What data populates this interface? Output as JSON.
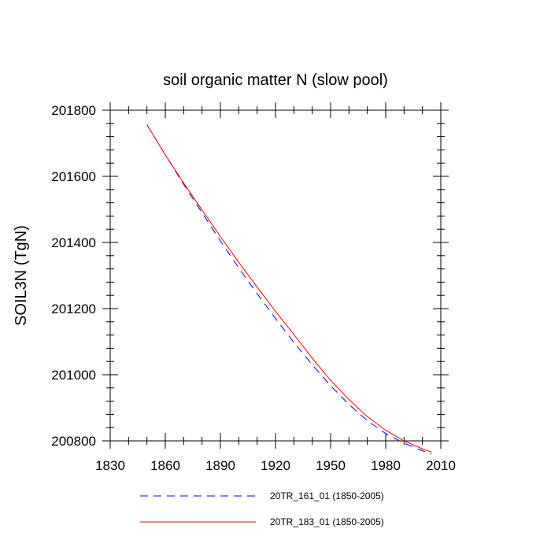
{
  "chart_data": {
    "type": "line",
    "title": "soil organic matter N (slow pool)",
    "xlabel": "",
    "ylabel": "SOIL3N  (TgN)",
    "xlim": [
      1830,
      2010
    ],
    "ylim": [
      200800,
      201800
    ],
    "xticks": [
      1830,
      1860,
      1890,
      1920,
      1950,
      1980,
      2010
    ],
    "yticks": [
      200800,
      201000,
      201200,
      201400,
      201600,
      201800
    ],
    "x_minor_step": 10,
    "y_minor_step": 40,
    "series": [
      {
        "name": "20TR_161_01 (1850-2005)",
        "color": "#0000ff",
        "style": "dashed",
        "x": [
          1850,
          1860,
          1870,
          1880,
          1890,
          1900,
          1910,
          1920,
          1930,
          1940,
          1950,
          1960,
          1970,
          1980,
          1990,
          2000,
          2005
        ],
        "y": [
          201756,
          201665,
          201576,
          201490,
          201405,
          201323,
          201245,
          201170,
          201098,
          201030,
          200967,
          200910,
          200861,
          200822,
          200793,
          200770,
          200760
        ]
      },
      {
        "name": "20TR_183_01 (1850-2005)",
        "color": "#ff0000",
        "style": "solid",
        "x": [
          1850,
          1860,
          1870,
          1880,
          1890,
          1900,
          1910,
          1920,
          1930,
          1940,
          1950,
          1960,
          1970,
          1980,
          1990,
          2000,
          2005
        ],
        "y": [
          201756,
          201665,
          201580,
          201498,
          201418,
          201340,
          201265,
          201192,
          201122,
          201050,
          200983,
          200925,
          200873,
          200832,
          200800,
          200776,
          200766
        ]
      }
    ]
  }
}
